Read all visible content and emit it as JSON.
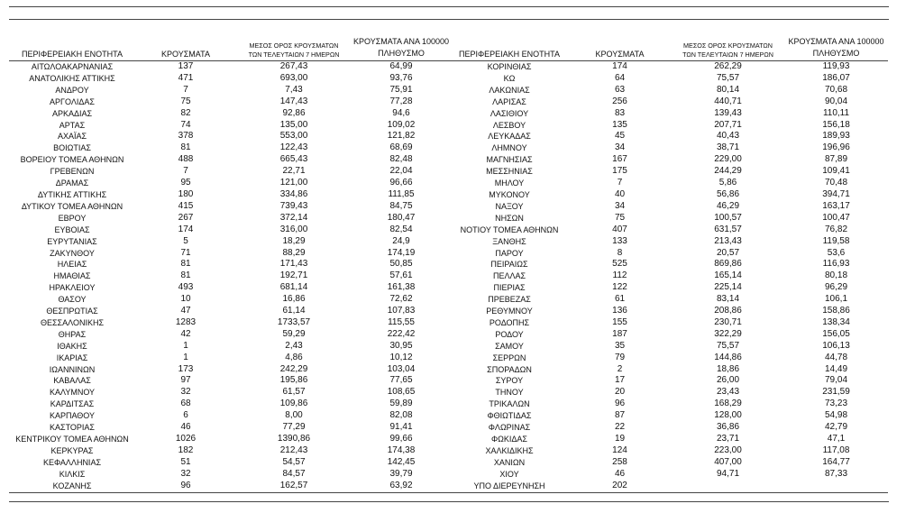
{
  "headers": {
    "region": "ΠΕΡΙΦΕΡΕΙΑΚΗ ΕΝΟΤΗΤΑ",
    "cases": "ΚΡΟΥΣΜΑΤΑ",
    "avg7_line1": "ΜΕΣΟΣ ΟΡΟΣ ΚΡΟΥΣΜΑΤΩΝ",
    "avg7_line2": "ΤΩΝ ΤΕΛΕΥΤΑΙΩΝ 7 ΗΜΕΡΩΝ",
    "per100k_line1": "ΚΡΟΥΣΜΑΤΑ ΑΝΑ 100000",
    "per100k_line2": "ΠΛΗΘΥΣΜΟ"
  },
  "left_rows": [
    [
      "ΑΙΤΩΛΟΑΚΑΡΝΑΝΙΑΣ",
      "137",
      "267,43",
      "64,99"
    ],
    [
      "ΑΝΑΤΟΛΙΚΗΣ ΑΤΤΙΚΗΣ",
      "471",
      "693,00",
      "93,76"
    ],
    [
      "ΑΝΔΡΟΥ",
      "7",
      "7,43",
      "75,91"
    ],
    [
      "ΑΡΓΟΛΙΔΑΣ",
      "75",
      "147,43",
      "77,28"
    ],
    [
      "ΑΡΚΑΔΙΑΣ",
      "82",
      "92,86",
      "94,6"
    ],
    [
      "ΑΡΤΑΣ",
      "74",
      "135,00",
      "109,02"
    ],
    [
      "ΑΧΑΪΑΣ",
      "378",
      "553,00",
      "121,82"
    ],
    [
      "ΒΟΙΩΤΙΑΣ",
      "81",
      "122,43",
      "68,69"
    ],
    [
      "ΒΟΡΕΙΟΥ ΤΟΜΕΑ ΑΘΗΝΩΝ",
      "488",
      "665,43",
      "82,48"
    ],
    [
      "ΓΡΕΒΕΝΩΝ",
      "7",
      "22,71",
      "22,04"
    ],
    [
      "ΔΡΑΜΑΣ",
      "95",
      "121,00",
      "96,66"
    ],
    [
      "ΔΥΤΙΚΗΣ ΑΤΤΙΚΗΣ",
      "180",
      "334,86",
      "111,85"
    ],
    [
      "ΔΥΤΙΚΟΥ ΤΟΜΕΑ ΑΘΗΝΩΝ",
      "415",
      "739,43",
      "84,75"
    ],
    [
      "ΕΒΡΟΥ",
      "267",
      "372,14",
      "180,47"
    ],
    [
      "ΕΥΒΟΙΑΣ",
      "174",
      "316,00",
      "82,54"
    ],
    [
      "ΕΥΡΥΤΑΝΙΑΣ",
      "5",
      "18,29",
      "24,9"
    ],
    [
      "ΖΑΚΥΝΘΟΥ",
      "71",
      "88,29",
      "174,19"
    ],
    [
      "ΗΛΕΙΑΣ",
      "81",
      "171,43",
      "50,85"
    ],
    [
      "ΗΜΑΘΙΑΣ",
      "81",
      "192,71",
      "57,61"
    ],
    [
      "ΗΡΑΚΛΕΙΟΥ",
      "493",
      "681,14",
      "161,38"
    ],
    [
      "ΘΑΣΟΥ",
      "10",
      "16,86",
      "72,62"
    ],
    [
      "ΘΕΣΠΡΩΤΙΑΣ",
      "47",
      "61,14",
      "107,83"
    ],
    [
      "ΘΕΣΣΑΛΟΝΙΚΗΣ",
      "1283",
      "1733,57",
      "115,55"
    ],
    [
      "ΘΗΡΑΣ",
      "42",
      "59,29",
      "222,42"
    ],
    [
      "ΙΘΑΚΗΣ",
      "1",
      "2,43",
      "30,95"
    ],
    [
      "ΙΚΑΡΙΑΣ",
      "1",
      "4,86",
      "10,12"
    ],
    [
      "ΙΩΑΝΝΙΝΩΝ",
      "173",
      "242,29",
      "103,04"
    ],
    [
      "ΚΑΒΑΛΑΣ",
      "97",
      "195,86",
      "77,65"
    ],
    [
      "ΚΑΛΥΜΝΟΥ",
      "32",
      "61,57",
      "108,65"
    ],
    [
      "ΚΑΡΔΙΤΣΑΣ",
      "68",
      "109,86",
      "59,89"
    ],
    [
      "ΚΑΡΠΑΘΟΥ",
      "6",
      "8,00",
      "82,08"
    ],
    [
      "ΚΑΣΤΟΡΙΑΣ",
      "46",
      "77,29",
      "91,41"
    ],
    [
      "ΚΕΝΤΡΙΚΟΥ ΤΟΜΕΑ ΑΘΗΝΩΝ",
      "1026",
      "1390,86",
      "99,66"
    ],
    [
      "ΚΕΡΚΥΡΑΣ",
      "182",
      "212,43",
      "174,38"
    ],
    [
      "ΚΕΦΑΛΛΗΝΙΑΣ",
      "51",
      "54,57",
      "142,45"
    ],
    [
      "ΚΙΛΚΙΣ",
      "32",
      "84,57",
      "39,79"
    ],
    [
      "ΚΟΖΑΝΗΣ",
      "96",
      "162,57",
      "63,92"
    ]
  ],
  "right_rows": [
    [
      "ΚΟΡΙΝΘΙΑΣ",
      "174",
      "262,29",
      "119,93"
    ],
    [
      "ΚΩ",
      "64",
      "75,57",
      "186,07"
    ],
    [
      "ΛΑΚΩΝΙΑΣ",
      "63",
      "80,14",
      "70,68"
    ],
    [
      "ΛΑΡΙΣΑΣ",
      "256",
      "440,71",
      "90,04"
    ],
    [
      "ΛΑΣΙΘΙΟΥ",
      "83",
      "139,43",
      "110,11"
    ],
    [
      "ΛΕΣΒΟΥ",
      "135",
      "207,71",
      "156,18"
    ],
    [
      "ΛΕΥΚΑΔΑΣ",
      "45",
      "40,43",
      "189,93"
    ],
    [
      "ΛΗΜΝΟΥ",
      "34",
      "38,71",
      "196,96"
    ],
    [
      "ΜΑΓΝΗΣΙΑΣ",
      "167",
      "229,00",
      "87,89"
    ],
    [
      "ΜΕΣΣΗΝΙΑΣ",
      "175",
      "244,29",
      "109,41"
    ],
    [
      "ΜΗΛΟΥ",
      "7",
      "5,86",
      "70,48"
    ],
    [
      "ΜΥΚΟΝΟΥ",
      "40",
      "56,86",
      "394,71"
    ],
    [
      "ΝΑΞΟΥ",
      "34",
      "46,29",
      "163,17"
    ],
    [
      "ΝΗΣΩΝ",
      "75",
      "100,57",
      "100,47"
    ],
    [
      "ΝΟΤΙΟΥ ΤΟΜΕΑ ΑΘΗΝΩΝ",
      "407",
      "631,57",
      "76,82"
    ],
    [
      "ΞΑΝΘΗΣ",
      "133",
      "213,43",
      "119,58"
    ],
    [
      "ΠΑΡΟΥ",
      "8",
      "20,57",
      "53,6"
    ],
    [
      "ΠΕΙΡΑΙΩΣ",
      "525",
      "869,86",
      "116,93"
    ],
    [
      "ΠΕΛΛΑΣ",
      "112",
      "165,14",
      "80,18"
    ],
    [
      "ΠΙΕΡΙΑΣ",
      "122",
      "225,14",
      "96,29"
    ],
    [
      "ΠΡΕΒΕΖΑΣ",
      "61",
      "83,14",
      "106,1"
    ],
    [
      "ΡΕΘΥΜΝΟΥ",
      "136",
      "208,86",
      "158,86"
    ],
    [
      "ΡΟΔΟΠΗΣ",
      "155",
      "230,71",
      "138,34"
    ],
    [
      "ΡΟΔΟΥ",
      "187",
      "322,29",
      "156,05"
    ],
    [
      "ΣΑΜΟΥ",
      "35",
      "75,57",
      "106,13"
    ],
    [
      "ΣΕΡΡΩΝ",
      "79",
      "144,86",
      "44,78"
    ],
    [
      "ΣΠΟΡΑΔΩΝ",
      "2",
      "18,86",
      "14,49"
    ],
    [
      "ΣΥΡΟΥ",
      "17",
      "26,00",
      "79,04"
    ],
    [
      "ΤΗΝΟΥ",
      "20",
      "23,43",
      "231,59"
    ],
    [
      "ΤΡΙΚΑΛΩΝ",
      "96",
      "168,29",
      "73,23"
    ],
    [
      "ΦΘΙΩΤΙΔΑΣ",
      "87",
      "128,00",
      "54,98"
    ],
    [
      "ΦΛΩΡΙΝΑΣ",
      "22",
      "36,86",
      "42,79"
    ],
    [
      "ΦΩΚΙΔΑΣ",
      "19",
      "23,71",
      "47,1"
    ],
    [
      "ΧΑΛΚΙΔΙΚΗΣ",
      "124",
      "223,00",
      "117,08"
    ],
    [
      "ΧΑΝΙΩΝ",
      "258",
      "407,00",
      "164,77"
    ],
    [
      "ΧΙΟΥ",
      "46",
      "94,71",
      "87,33"
    ],
    [
      "ΥΠΟ ΔΙΕΡΕΥΝΗΣΗ",
      "202",
      "",
      ""
    ]
  ]
}
